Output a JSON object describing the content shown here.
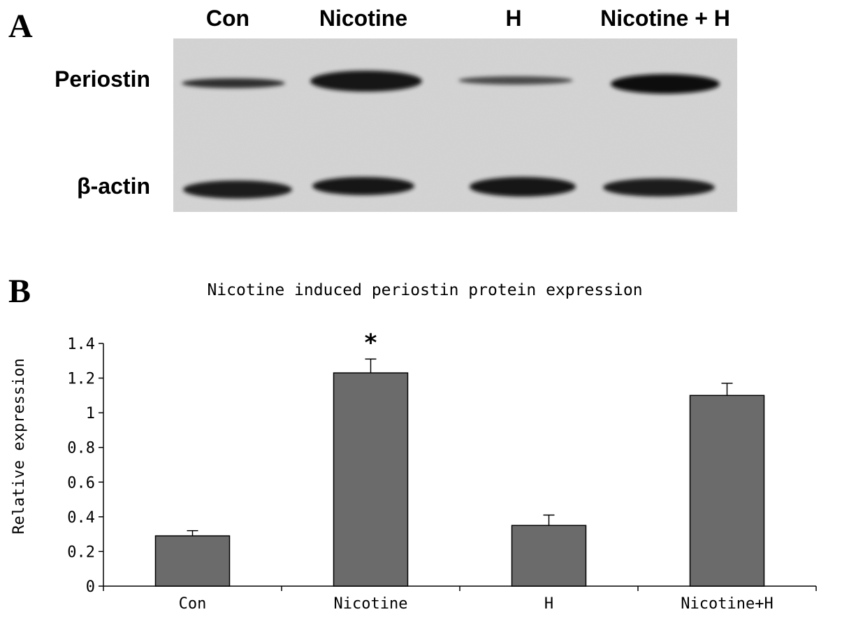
{
  "panel_a": {
    "letter": "A",
    "lanes": [
      "Con",
      "Nicotine",
      "H",
      "Nicotine + H"
    ],
    "rows": [
      "Periostin",
      "β-actin"
    ]
  },
  "panel_b": {
    "letter": "B",
    "significance_marker": "*"
  },
  "chart_data": {
    "type": "bar",
    "title": "Nicotine induced periostin protein expression",
    "xlabel": "",
    "ylabel": "Relative expression",
    "categories": [
      "Con",
      "Nicotine",
      "H",
      "Nicotine+H"
    ],
    "values": [
      0.29,
      1.23,
      0.35,
      1.1
    ],
    "errors": [
      0.03,
      0.08,
      0.06,
      0.07
    ],
    "ylim": [
      0,
      1.4
    ],
    "yticks": [
      "0",
      "0.2",
      "0.4",
      "0.6",
      "0.8",
      "1",
      "1.2",
      "1.4"
    ],
    "bar_color": "#6b6b6b",
    "grid": false,
    "annotations": [
      {
        "category": "Nicotine",
        "text": "*"
      }
    ]
  }
}
